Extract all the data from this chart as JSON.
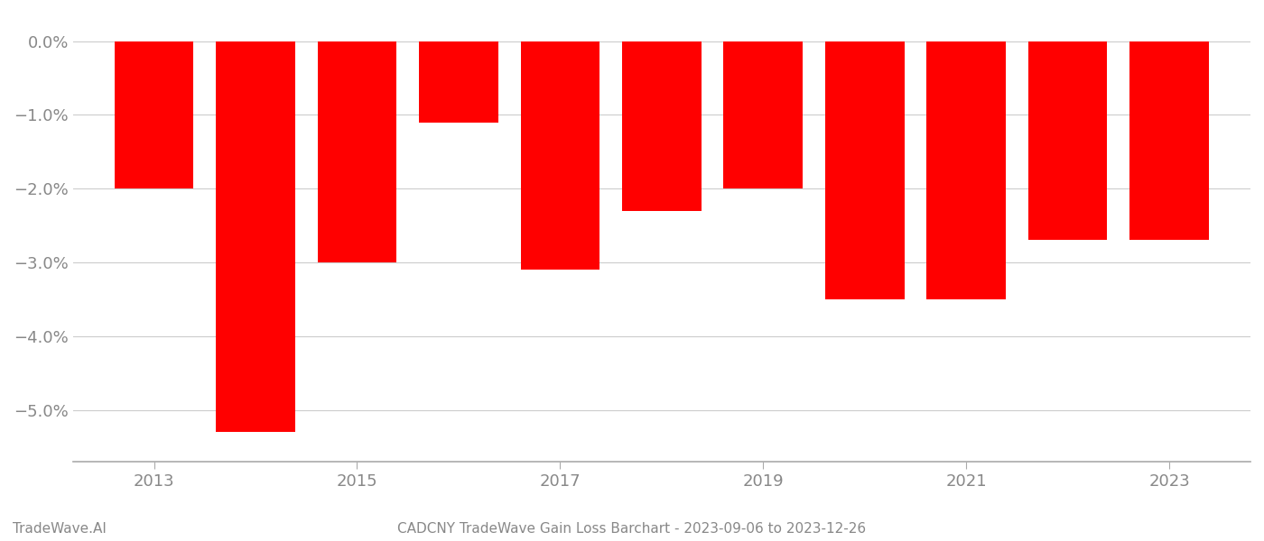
{
  "years": [
    2013,
    2014,
    2015,
    2016,
    2017,
    2018,
    2019,
    2020,
    2021,
    2022,
    2023
  ],
  "values": [
    -0.02,
    -0.053,
    -0.03,
    -0.011,
    -0.031,
    -0.023,
    -0.02,
    -0.035,
    -0.035,
    -0.027,
    -0.027
  ],
  "bar_color": "#ff0000",
  "title": "CADCNY TradeWave Gain Loss Barchart - 2023-09-06 to 2023-12-26",
  "watermark": "TradeWave.AI",
  "ylim_min": -0.057,
  "ylim_max": 0.003,
  "ytick_values": [
    0.0,
    -0.01,
    -0.02,
    -0.03,
    -0.04,
    -0.05
  ],
  "ytick_labels": [
    "0.0%",
    "−1.0%",
    "−2.0%",
    "−3.0%",
    "−4.0%",
    "−5.0%"
  ],
  "xtick_labels": [
    "2013",
    "2015",
    "2017",
    "2019",
    "2021",
    "2023"
  ],
  "xtick_positions": [
    2013,
    2015,
    2017,
    2019,
    2021,
    2023
  ],
  "bar_width": 0.78,
  "background_color": "#ffffff",
  "grid_color": "#cccccc",
  "axis_color": "#aaaaaa",
  "text_color": "#888888",
  "title_fontsize": 11,
  "watermark_fontsize": 11,
  "tick_fontsize": 13
}
